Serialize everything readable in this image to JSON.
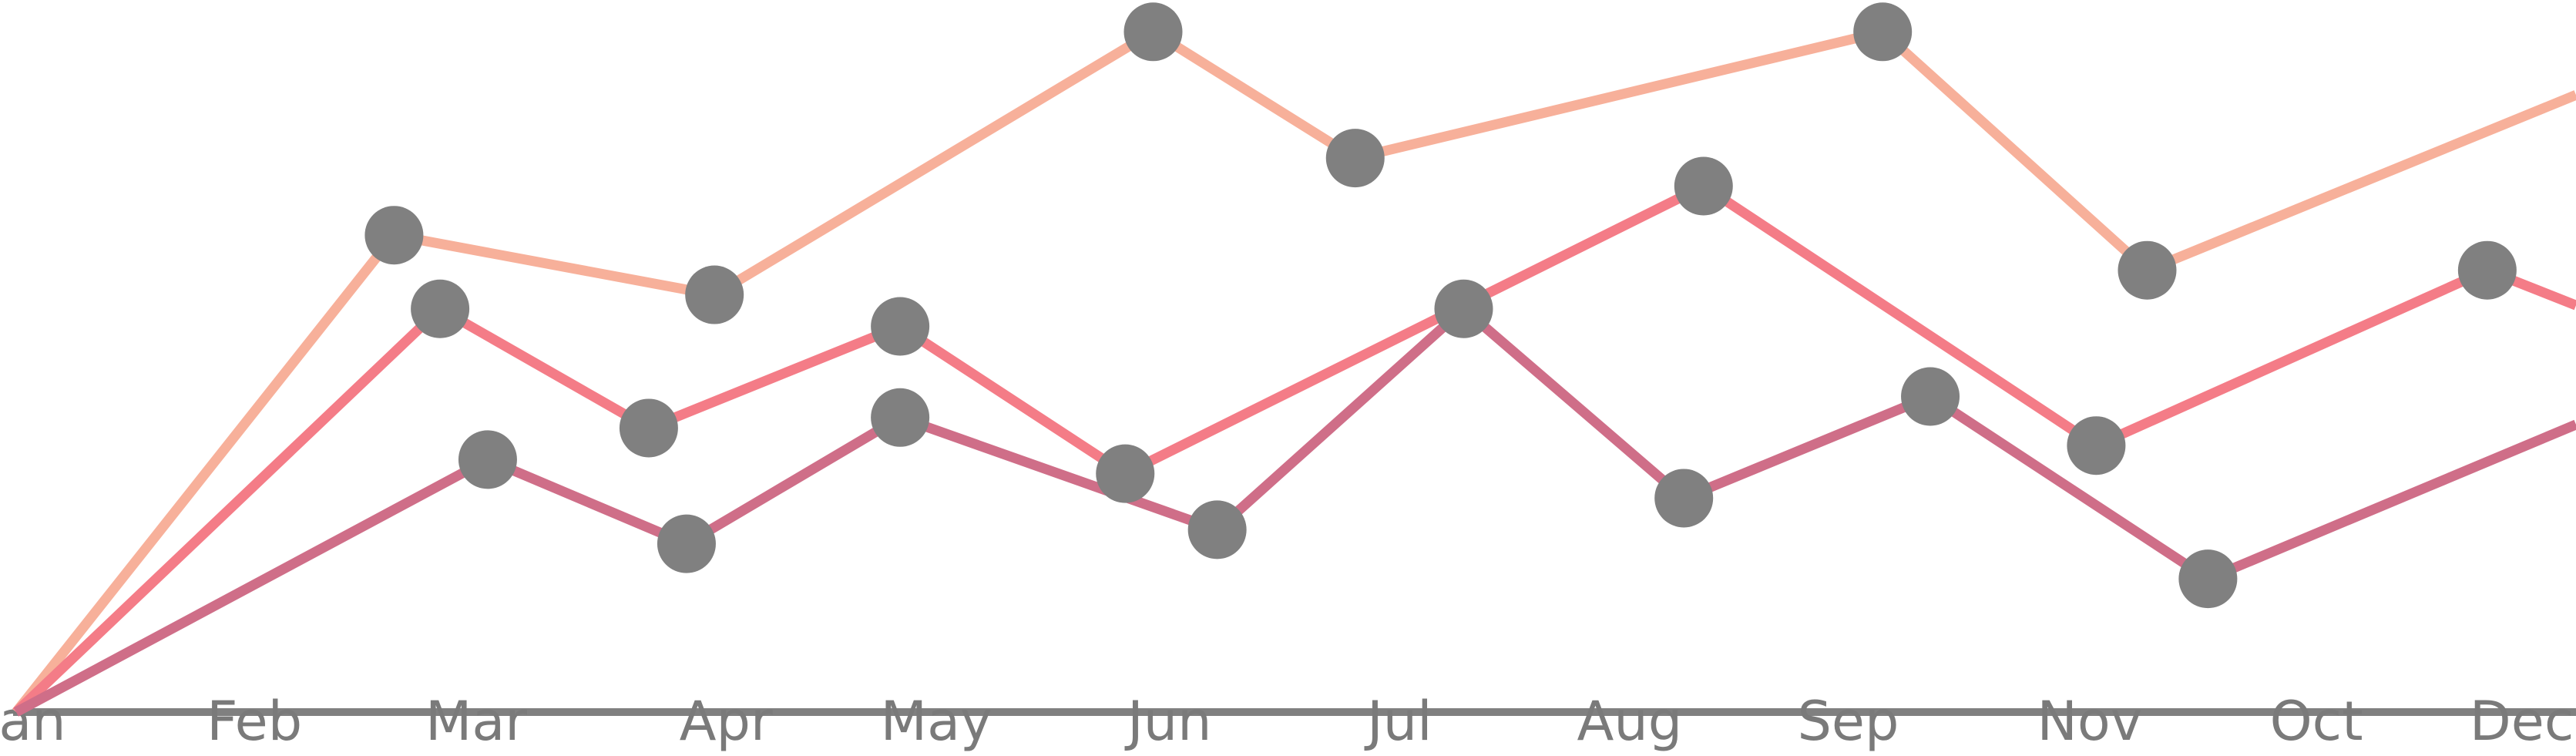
{
  "chart_data": {
    "type": "line",
    "xlim": [
      0,
      1558
    ],
    "ylim": [
      0,
      100
    ],
    "xticks": [
      {
        "value": 5,
        "label": "Jan"
      },
      {
        "value": 145,
        "label": "Feb"
      },
      {
        "value": 280,
        "label": "Mar"
      },
      {
        "value": 432,
        "label": "Apr"
      },
      {
        "value": 560,
        "label": "May"
      },
      {
        "value": 702,
        "label": "Jun"
      },
      {
        "value": 842,
        "label": "Jul"
      },
      {
        "value": 982,
        "label": "Aug"
      },
      {
        "value": 1115,
        "label": "Sep"
      },
      {
        "value": 1262,
        "label": "Nov"
      },
      {
        "value": 1400,
        "label": "Oct"
      },
      {
        "value": 1525,
        "label": "Dec"
      }
    ],
    "marker_color": "#808080",
    "axis_color": "#808080",
    "series": [
      {
        "color": "#f7b09a",
        "x": [
          0,
          230,
          425,
          692,
          815,
          1136,
          1297,
          1558
        ],
        "values": [
          0,
          68,
          59.5,
          97,
          79,
          97,
          63,
          88
        ]
      },
      {
        "color": "#f47c87",
        "x": [
          0,
          258,
          385,
          538,
          675,
          1027,
          1266,
          1504,
          1558
        ],
        "values": [
          0,
          57.5,
          40.5,
          55,
          34,
          75,
          38,
          63,
          58
        ]
      },
      {
        "color": "#cf6e88",
        "x": [
          0,
          287,
          408,
          538,
          731,
          881,
          1015,
          1165,
          1334,
          1558
        ],
        "values": [
          0,
          36,
          24,
          42,
          26,
          57.5,
          30.5,
          45,
          19,
          41
        ]
      }
    ]
  }
}
